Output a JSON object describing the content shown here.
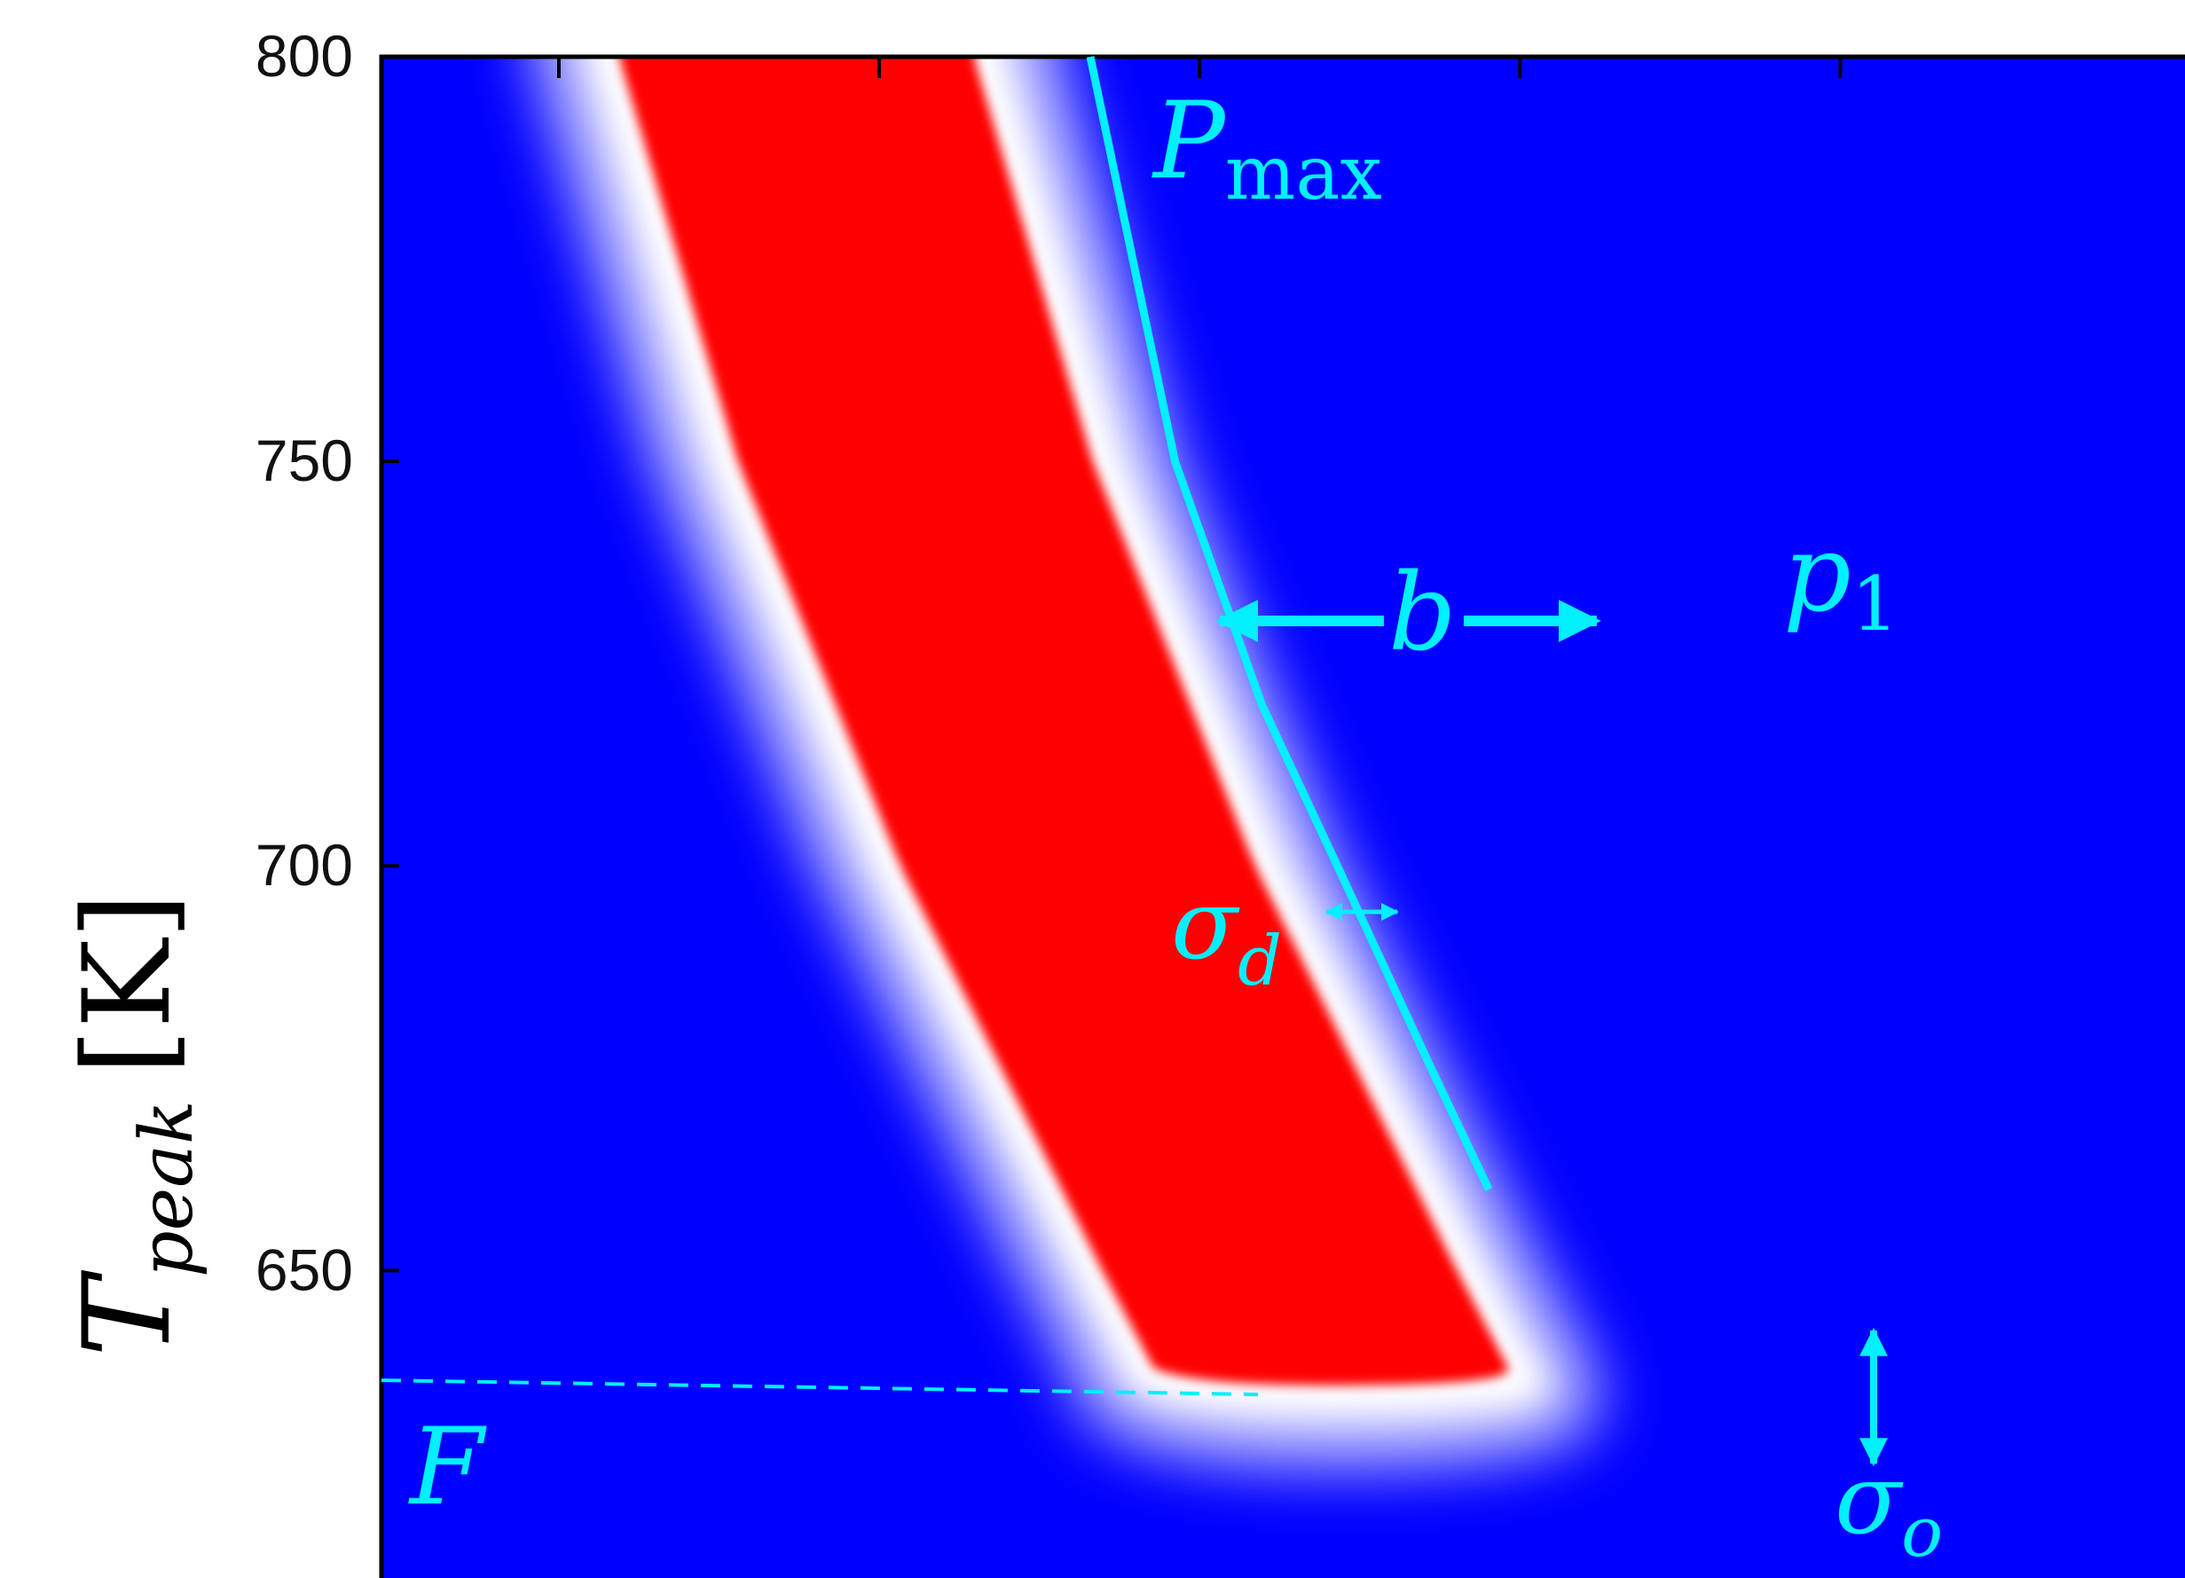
{
  "chart_data": {
    "type": "heatmap",
    "title": "",
    "xlabel": "",
    "ylabel": "T_peak [K]",
    "ylabel_parts": {
      "base": "T",
      "sub": "peak",
      "unit": "[K]"
    },
    "ylim": [
      612,
      800
    ],
    "yticks": [
      800,
      750,
      700,
      650
    ],
    "ytick_labels": [
      "800",
      "750",
      "700",
      "650"
    ],
    "xticks_count": 5,
    "grid": false,
    "colors": {
      "background": "#0000ff",
      "band": "#ff0000",
      "edge": "#ffffff",
      "annotation": "#00f0ff"
    },
    "band_ridge": [
      {
        "t": 800,
        "pos": 0.23
      },
      {
        "t": 750,
        "pos": 0.296
      },
      {
        "t": 700,
        "pos": 0.386
      },
      {
        "t": 650,
        "pos": 0.498
      },
      {
        "t": 636,
        "pos": 0.531
      }
    ],
    "p1_curve": [
      {
        "t": 800,
        "pos": 0.393
      },
      {
        "t": 750,
        "pos": 0.44
      },
      {
        "t": 720,
        "pos": 0.488
      },
      {
        "t": 700,
        "pos": 0.53
      },
      {
        "t": 675,
        "pos": 0.582
      },
      {
        "t": 660,
        "pos": 0.614
      }
    ],
    "threshold_F": 636,
    "annotations": {
      "P_max": {
        "base": "P",
        "sub": "max"
      },
      "b": "b",
      "p1": {
        "base": "p",
        "sub": "1"
      },
      "sigma_d": {
        "base": "σ",
        "sub": "d"
      },
      "sigma_o": {
        "base": "σ",
        "sub": "o"
      },
      "F": "F"
    }
  }
}
